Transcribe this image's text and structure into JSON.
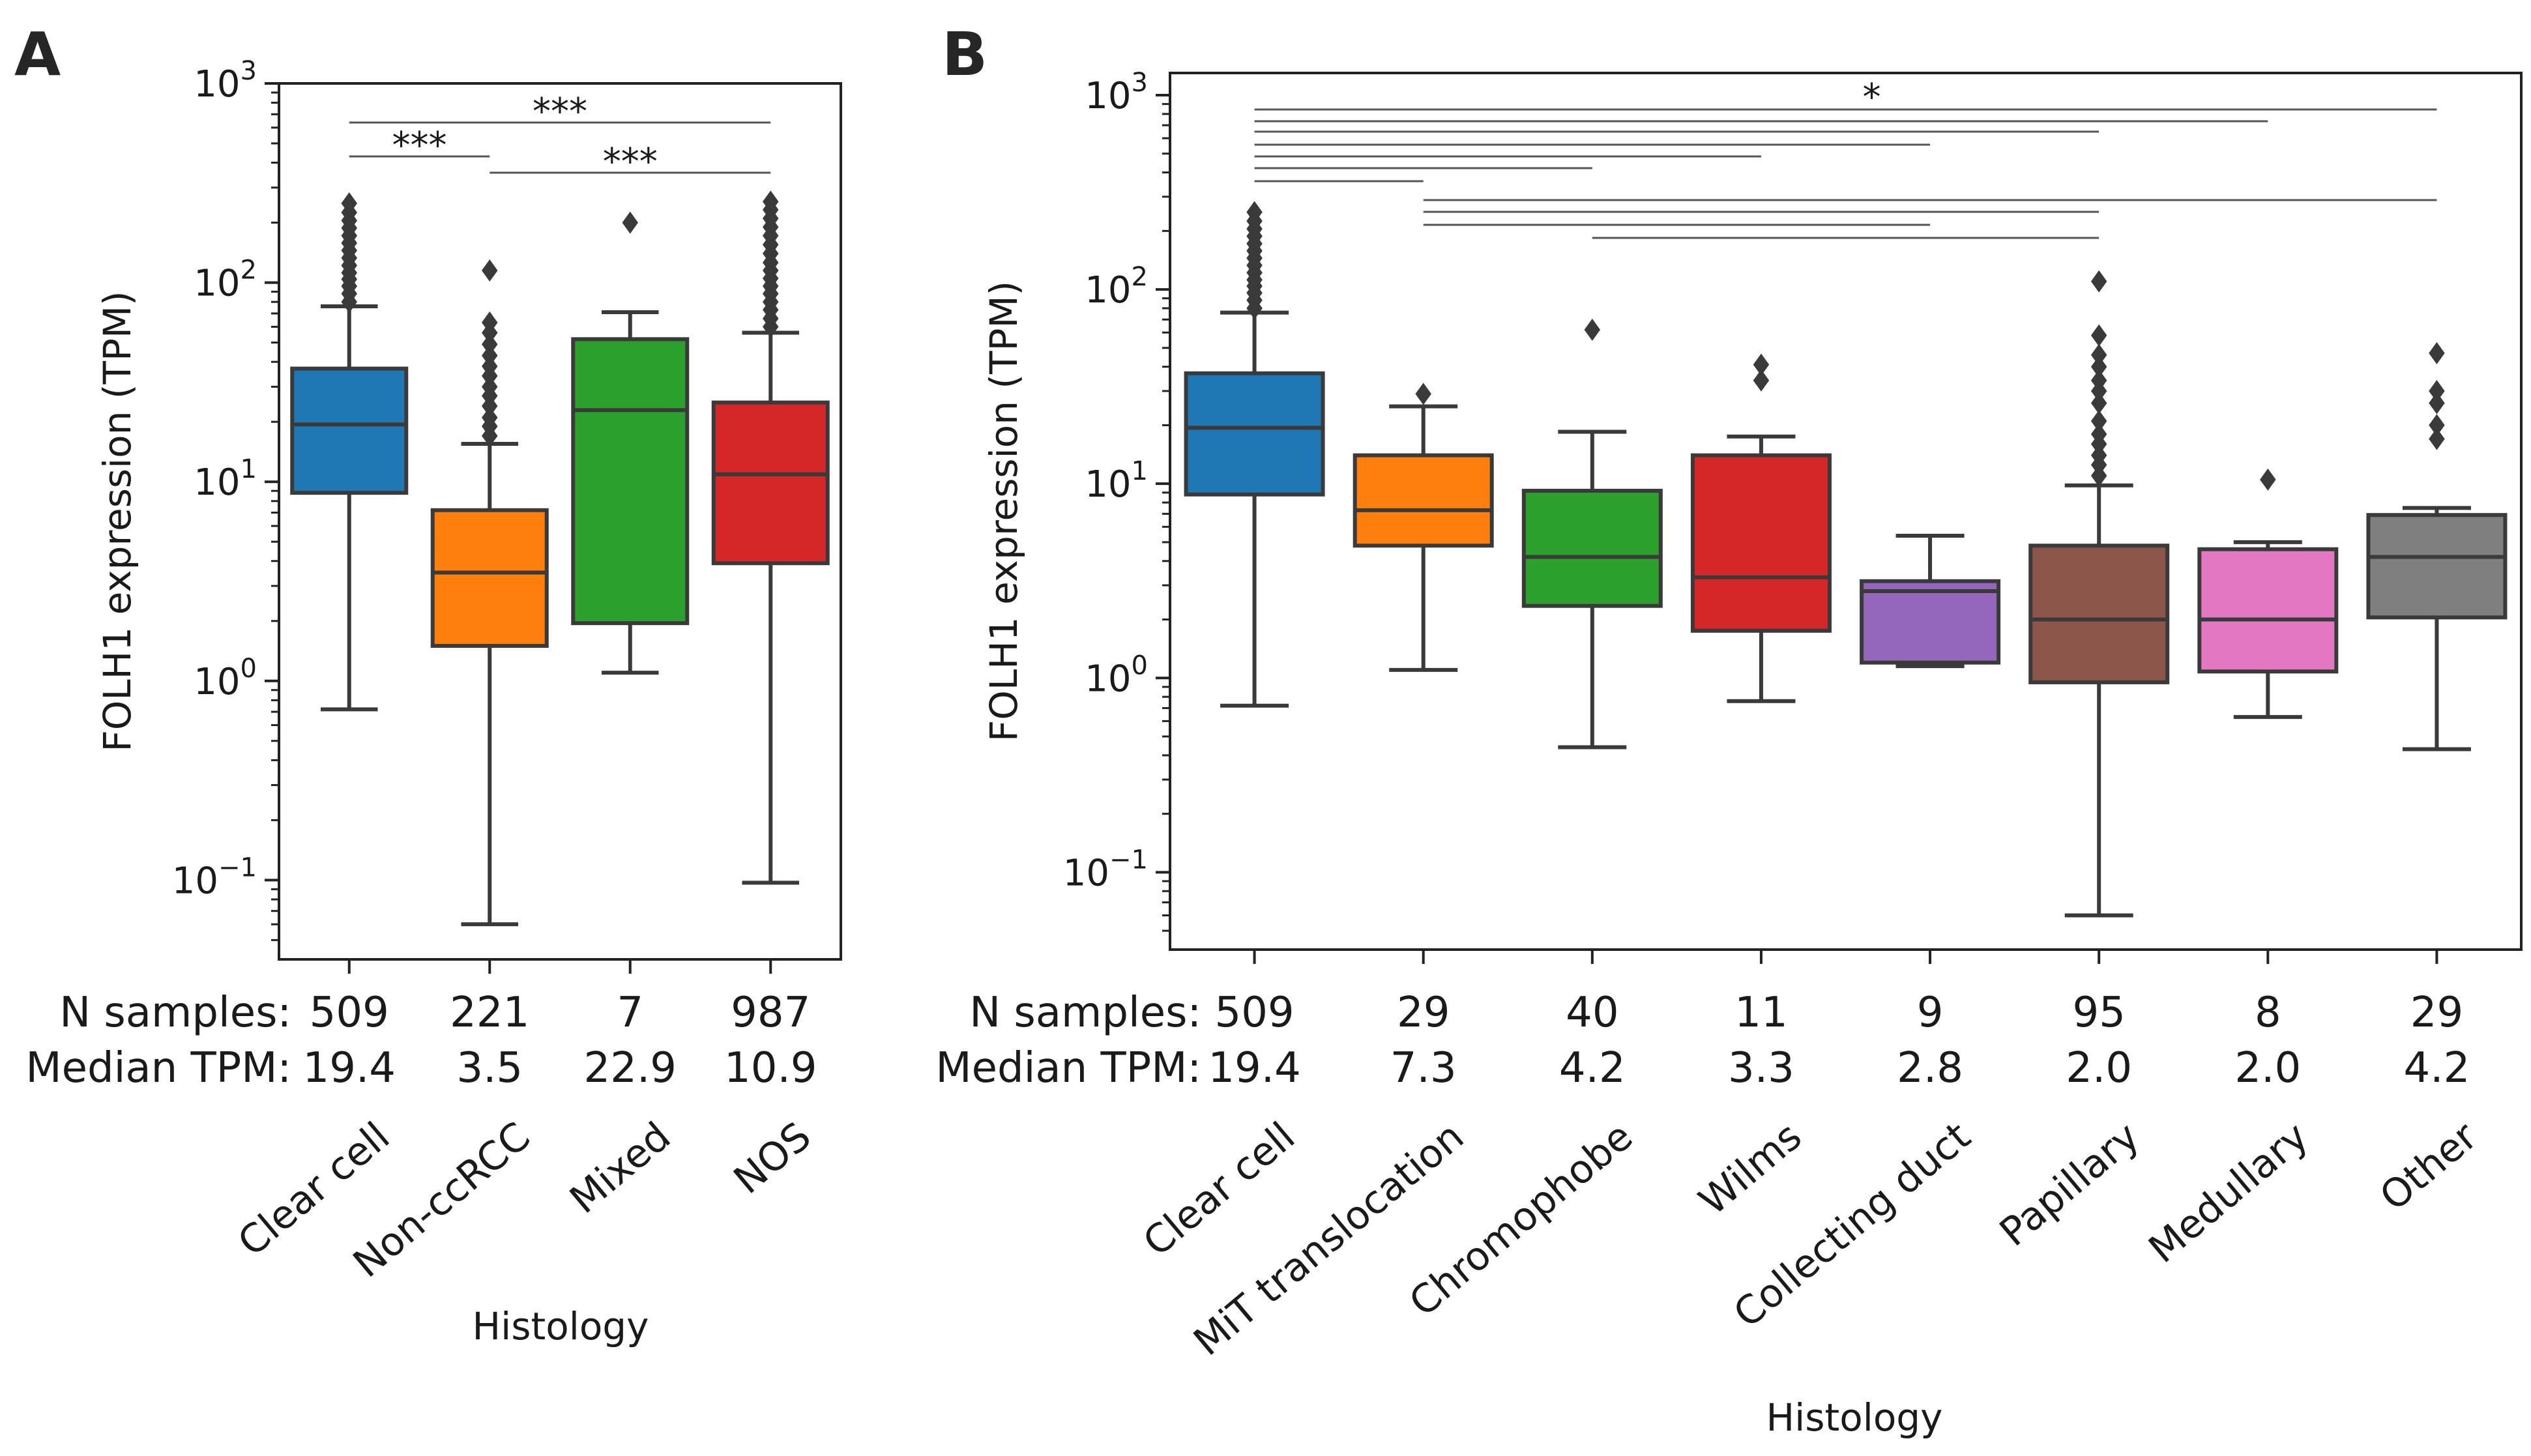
{
  "chart_data": [
    {
      "panel": "A",
      "type": "box",
      "xlabel": "Histology",
      "ylabel": "FOLH1 expression (TPM)",
      "yscale": "log",
      "ylim": [
        0.04,
        1000
      ],
      "yticks": [
        {
          "value": 0.1,
          "base": "10",
          "exp": "−1"
        },
        {
          "value": 1,
          "base": "10",
          "exp": "0"
        },
        {
          "value": 10,
          "base": "10",
          "exp": "1"
        },
        {
          "value": 100,
          "base": "10",
          "exp": "2"
        },
        {
          "value": 1000,
          "base": "10",
          "exp": "3"
        }
      ],
      "row_labels": {
        "n": "N samples:",
        "median": "Median TPM:"
      },
      "categories": [
        "Clear cell",
        "Non-ccRCC",
        "Mixed",
        "NOS"
      ],
      "n_samples": [
        "509",
        "221",
        "7",
        "987"
      ],
      "median_tpm": [
        "19.4",
        "3.5",
        "22.9",
        "10.9"
      ],
      "boxes": [
        {
          "q1": 8.8,
          "median": 19.4,
          "q3": 37,
          "whisker_low": 0.72,
          "whisker_high": 76,
          "outliers": [
            80,
            88,
            96,
            104,
            112,
            122,
            133,
            145,
            158,
            172,
            188,
            205,
            225,
            250
          ],
          "color": "#1f77b4"
        },
        {
          "q1": 1.5,
          "median": 3.5,
          "q3": 7.2,
          "whisker_low": 0.06,
          "whisker_high": 15.5,
          "outliers": [
            17,
            19,
            21,
            24,
            27,
            30,
            34,
            38,
            43,
            49,
            56,
            63,
            115
          ],
          "color": "#ff7f0e"
        },
        {
          "q1": 1.95,
          "median": 22.9,
          "q3": 52,
          "whisker_low": 1.1,
          "whisker_high": 71,
          "outliers": [
            200
          ],
          "color": "#2ca02c"
        },
        {
          "q1": 3.9,
          "median": 10.9,
          "q3": 25,
          "whisker_low": 0.097,
          "whisker_high": 56,
          "outliers": [
            60,
            66,
            73,
            80,
            88,
            96,
            105,
            115,
            126,
            140,
            155,
            172,
            190,
            210,
            232,
            255
          ],
          "color": "#d62728"
        }
      ],
      "significance": [
        {
          "from": 0,
          "to": 1,
          "label": "***"
        },
        {
          "from": 0,
          "to": 3,
          "label": "***"
        },
        {
          "from": 1,
          "to": 3,
          "label": "***"
        }
      ]
    },
    {
      "panel": "B",
      "type": "box",
      "xlabel": "Histology",
      "ylabel": "FOLH1 expression (TPM)",
      "yscale": "log",
      "ylim": [
        0.04,
        1300
      ],
      "yticks": [
        {
          "value": 0.1,
          "base": "10",
          "exp": "−1"
        },
        {
          "value": 1,
          "base": "10",
          "exp": "0"
        },
        {
          "value": 10,
          "base": "10",
          "exp": "1"
        },
        {
          "value": 100,
          "base": "10",
          "exp": "2"
        },
        {
          "value": 1000,
          "base": "10",
          "exp": "3"
        }
      ],
      "row_labels": {
        "n": "N samples:",
        "median": "Median TPM:"
      },
      "categories": [
        "Clear cell",
        "MiT translocation",
        "Chromophobe",
        "Wilms",
        "Collecting duct",
        "Papillary",
        "Medullary",
        "Other"
      ],
      "n_samples": [
        "509",
        "29",
        "40",
        "11",
        "9",
        "95",
        "8",
        "29"
      ],
      "median_tpm": [
        "19.4",
        "7.3",
        "4.2",
        "3.3",
        "2.8",
        "2.0",
        "2.0",
        "4.2"
      ],
      "boxes": [
        {
          "q1": 8.8,
          "median": 19.4,
          "q3": 37,
          "whisker_low": 0.72,
          "whisker_high": 76,
          "outliers": [
            80,
            88,
            96,
            104,
            112,
            122,
            133,
            145,
            158,
            172,
            188,
            205,
            225,
            250
          ],
          "color": "#1f77b4"
        },
        {
          "q1": 4.8,
          "median": 7.3,
          "q3": 14,
          "whisker_low": 1.1,
          "whisker_high": 25,
          "outliers": [
            29
          ],
          "color": "#ff7f0e"
        },
        {
          "q1": 2.35,
          "median": 4.2,
          "q3": 9.2,
          "whisker_low": 0.44,
          "whisker_high": 18.5,
          "outliers": [
            62
          ],
          "color": "#2ca02c"
        },
        {
          "q1": 1.75,
          "median": 3.3,
          "q3": 14,
          "whisker_low": 0.76,
          "whisker_high": 17.5,
          "outliers": [
            34,
            41
          ],
          "color": "#d62728"
        },
        {
          "q1": 1.2,
          "median": 2.8,
          "q3": 3.15,
          "whisker_low": 1.15,
          "whisker_high": 5.4,
          "outliers": [],
          "color": "#9467bd"
        },
        {
          "q1": 0.95,
          "median": 2.0,
          "q3": 4.8,
          "whisker_low": 0.06,
          "whisker_high": 9.8,
          "outliers": [
            11,
            12.5,
            14,
            16,
            18,
            21,
            26,
            30,
            34,
            40,
            46,
            58,
            110
          ],
          "color": "#8c564b"
        },
        {
          "q1": 1.08,
          "median": 2.0,
          "q3": 4.6,
          "whisker_low": 0.63,
          "whisker_high": 5.0,
          "outliers": [
            10.5
          ],
          "color": "#e377c2"
        },
        {
          "q1": 2.05,
          "median": 4.2,
          "q3": 6.9,
          "whisker_low": 0.43,
          "whisker_high": 7.5,
          "outliers": [
            17,
            20,
            26,
            30,
            47
          ],
          "color": "#7f7f7f"
        }
      ],
      "significance_label": "*",
      "significance": [
        {
          "from": 0,
          "to": 7
        },
        {
          "from": 0,
          "to": 6
        },
        {
          "from": 0,
          "to": 5
        },
        {
          "from": 0,
          "to": 4
        },
        {
          "from": 0,
          "to": 3
        },
        {
          "from": 0,
          "to": 2
        },
        {
          "from": 0,
          "to": 1
        },
        {
          "from": 1,
          "to": 7
        },
        {
          "from": 1,
          "to": 5
        },
        {
          "from": 1,
          "to": 4
        },
        {
          "from": 2,
          "to": 5
        }
      ]
    }
  ],
  "panel_labels": [
    "A",
    "B"
  ]
}
